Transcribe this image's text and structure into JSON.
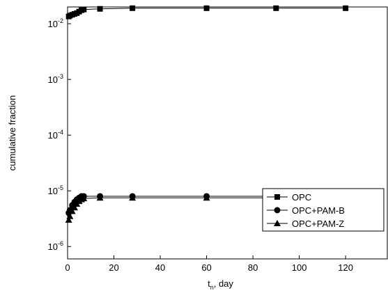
{
  "chart_data": {
    "type": "line",
    "x_label": {
      "text": "t",
      "sub": "n",
      "rest": ", day"
    },
    "y_label": "cumulative fraction",
    "log_y": true,
    "legend": "lower right",
    "x": [
      0.5,
      1,
      2,
      3,
      4,
      5,
      6,
      7,
      14,
      28,
      60,
      90,
      120
    ],
    "series": [
      {
        "name": "OPC",
        "color": "#000000",
        "marker": "square",
        "values": [
          0.0135,
          0.014,
          0.0145,
          0.015,
          0.0155,
          0.0165,
          0.0175,
          0.018,
          0.0185,
          0.019,
          0.019,
          0.019,
          0.019
        ]
      },
      {
        "name": "OPC+PAM-B",
        "color": "#000000",
        "marker": "circle",
        "values": [
          4e-06,
          4.5e-06,
          5.5e-06,
          6.3e-06,
          7e-06,
          7.5e-06,
          8e-06,
          8e-06,
          8e-06,
          8e-06,
          8e-06,
          8e-06,
          8e-06
        ]
      },
      {
        "name": "OPC+PAM-Z",
        "color": "#000000",
        "marker": "triangle",
        "values": [
          3e-06,
          3.5e-06,
          4.3e-06,
          5e-06,
          5.8e-06,
          6.5e-06,
          7e-06,
          7.3e-06,
          7.5e-06,
          7.5e-06,
          7.5e-06,
          7.5e-06,
          7.5e-06
        ]
      }
    ],
    "xlim": [
      0,
      138
    ],
    "xticks": [
      0,
      20,
      40,
      60,
      80,
      100,
      120
    ],
    "ylim": [
      6e-07,
      0.02
    ],
    "yticks": [
      {
        "value": 0.01,
        "label": "10",
        "sup": "-2"
      },
      {
        "value": 0.001,
        "label": "10",
        "sup": "-3"
      },
      {
        "value": 0.0001,
        "label": "10",
        "sup": "-4"
      },
      {
        "value": 1e-05,
        "label": "10",
        "sup": "-5"
      },
      {
        "value": 1e-06,
        "label": "10",
        "sup": "-6"
      }
    ]
  }
}
